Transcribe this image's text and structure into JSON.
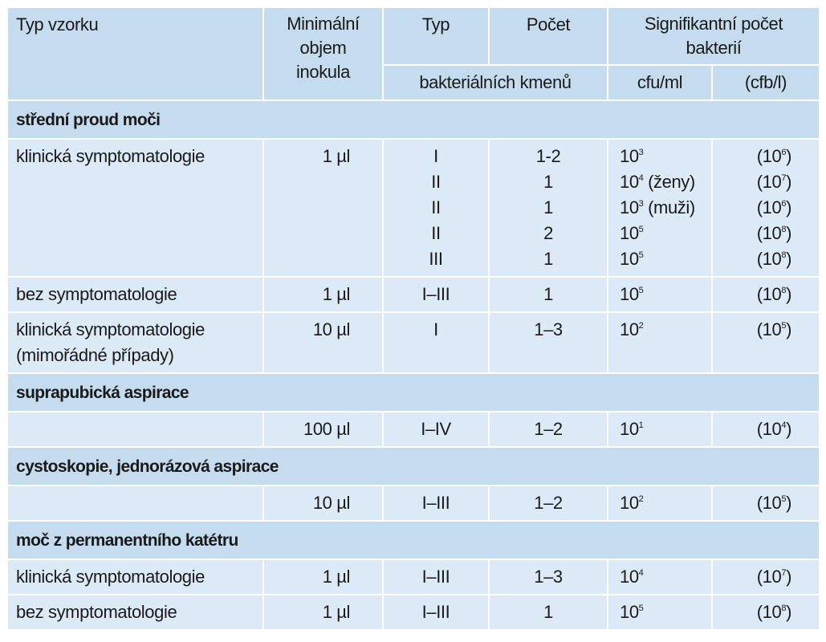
{
  "header": {
    "col_type": "Typ vzorku",
    "col_volume": "Minimální objem inokula",
    "col_volume_lines": [
      "Minimální",
      "objem",
      "inokula"
    ],
    "col_typ": "Typ",
    "col_count": "Počet",
    "col_strains": "bakteriálních kmenů",
    "col_significant": "Signifikantní počet bakterií",
    "col_significant_lines": [
      "Signifikantní počet",
      "bakterií"
    ],
    "unit_cfu": "cfu/ml",
    "unit_cfb": "(cfb/l)"
  },
  "sections": [
    {
      "title": "střední proud moči",
      "rows": [
        {
          "label_lines": [
            "klinická symptomatologie"
          ],
          "volume": "1 µl",
          "entries": [
            {
              "type": "I",
              "count": "1-2",
              "cfu_base": "10",
              "cfu_exp": "3",
              "cfu_note": "",
              "cfb_base": "(10",
              "cfb_exp": "6",
              "cfb_close": ")"
            },
            {
              "type": "II",
              "count": "1",
              "cfu_base": "10",
              "cfu_exp": "4",
              "cfu_note": " (ženy)",
              "cfb_base": "(10",
              "cfb_exp": "7",
              "cfb_close": ")"
            },
            {
              "type": "II",
              "count": "1",
              "cfu_base": "10",
              "cfu_exp": "3",
              "cfu_note": " (muži)",
              "cfb_base": "(10",
              "cfb_exp": "6",
              "cfb_close": ")"
            },
            {
              "type": "II",
              "count": "2",
              "cfu_base": "10",
              "cfu_exp": "5",
              "cfu_note": "",
              "cfb_base": "(10",
              "cfb_exp": "8",
              "cfb_close": ")"
            },
            {
              "type": "III",
              "count": "1",
              "cfu_base": "10",
              "cfu_exp": "5",
              "cfu_note": "",
              "cfb_base": "(10",
              "cfb_exp": "8",
              "cfb_close": ")"
            }
          ]
        },
        {
          "label_lines": [
            "bez symptomatologie"
          ],
          "volume": "1 µl",
          "entries": [
            {
              "type": "I–III",
              "count": "1",
              "cfu_base": "10",
              "cfu_exp": "5",
              "cfu_note": "",
              "cfb_base": "(10",
              "cfb_exp": "8",
              "cfb_close": ")"
            }
          ]
        },
        {
          "label_lines": [
            "klinická symptomatologie",
            "(mimořádné případy)"
          ],
          "volume": "10 µl",
          "entries": [
            {
              "type": "I",
              "count": "1–3",
              "cfu_base": "10",
              "cfu_exp": "2",
              "cfu_note": "",
              "cfb_base": "(10",
              "cfb_exp": "5",
              "cfb_close": ")"
            }
          ]
        }
      ]
    },
    {
      "title": "suprapubická aspirace",
      "rows": [
        {
          "label_lines": [
            ""
          ],
          "volume": "100 µl",
          "entries": [
            {
              "type": "I–IV",
              "count": "1–2",
              "cfu_base": "10",
              "cfu_exp": "1",
              "cfu_note": "",
              "cfb_base": "(10",
              "cfb_exp": "4",
              "cfb_close": ")"
            }
          ]
        }
      ]
    },
    {
      "title": "cystoskopie, jednorázová aspirace",
      "rows": [
        {
          "label_lines": [
            ""
          ],
          "volume": "10 µl",
          "entries": [
            {
              "type": "I–III",
              "count": "1–2",
              "cfu_base": "10",
              "cfu_exp": "2",
              "cfu_note": "",
              "cfb_base": "(10",
              "cfb_exp": "5",
              "cfb_close": ")"
            }
          ]
        }
      ]
    },
    {
      "title": "moč z permanentního katétru",
      "rows": [
        {
          "label_lines": [
            "klinická symptomatologie"
          ],
          "volume": "1 µl",
          "entries": [
            {
              "type": "I–III",
              "count": "1–3",
              "cfu_base": "10",
              "cfu_exp": "4",
              "cfu_note": "",
              "cfb_base": "(10",
              "cfb_exp": "7",
              "cfb_close": ")"
            }
          ]
        },
        {
          "label_lines": [
            "bez symptomatologie"
          ],
          "volume": "1 µl",
          "entries": [
            {
              "type": "I–III",
              "count": "1",
              "cfu_base": "10",
              "cfu_exp": "5",
              "cfu_note": "",
              "cfb_base": "(10",
              "cfb_exp": "8",
              "cfb_close": ")"
            }
          ]
        }
      ]
    }
  ]
}
